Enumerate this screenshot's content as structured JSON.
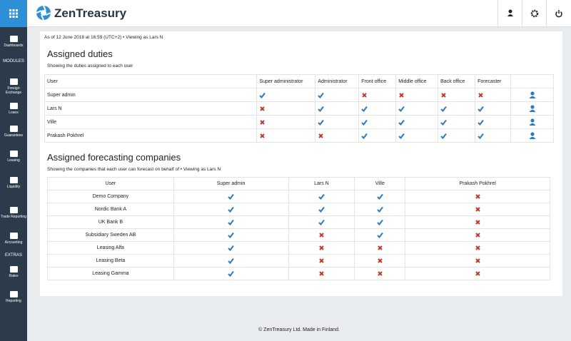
{
  "header": {
    "brand": "ZenTreasury"
  },
  "sidebar": {
    "items": [
      {
        "label": "Dashboards"
      },
      {
        "section": "MODULES"
      },
      {
        "label": "Foreign Exchange"
      },
      {
        "label": "Loans"
      },
      {
        "label": "Guarantees"
      },
      {
        "label": "Leasing"
      },
      {
        "label": "Liquidity"
      },
      {
        "label": "Trade Reporting"
      },
      {
        "label": "Accounting"
      },
      {
        "section": "EXTRAS"
      },
      {
        "label": "Rates"
      },
      {
        "label": "Reporting"
      }
    ]
  },
  "status": "As of 12 June 2018 at 16:59 (UTC+2) • Viewing as Lars N",
  "duties": {
    "title": "Assigned duties",
    "subtitle": "Showing the duties assigned to each user",
    "columns": [
      "User",
      "Super administrator",
      "Administrator",
      "Front office",
      "Middle office",
      "Back office",
      "Forecaster"
    ],
    "rows": [
      {
        "user": "Super admin",
        "values": [
          true,
          true,
          false,
          false,
          false,
          false
        ]
      },
      {
        "user": "Lars N",
        "values": [
          false,
          true,
          true,
          true,
          true,
          true
        ]
      },
      {
        "user": "Ville",
        "values": [
          false,
          true,
          true,
          true,
          true,
          true
        ]
      },
      {
        "user": "Prakash Pokhrel",
        "values": [
          false,
          false,
          true,
          true,
          true,
          true
        ]
      }
    ]
  },
  "forecasting": {
    "title": "Assigned forecasting companies",
    "subtitle": "Showing the companies that each user can forecast on behalf of • Viewing as Lars N",
    "columns": [
      "User",
      "Super admin",
      "Lars N",
      "Ville",
      "Prakash Pokhrel"
    ],
    "rows": [
      {
        "company": "Demo Company",
        "values": [
          true,
          true,
          true,
          false
        ]
      },
      {
        "company": "Nordic Bank A",
        "values": [
          true,
          true,
          true,
          false
        ]
      },
      {
        "company": "UK Bank B",
        "values": [
          true,
          true,
          true,
          false
        ]
      },
      {
        "company": "Subsidiary Sweden AB",
        "values": [
          true,
          false,
          true,
          false
        ]
      },
      {
        "company": "Leasing Alfa",
        "values": [
          true,
          false,
          false,
          false
        ]
      },
      {
        "company": "Leasing Beta",
        "values": [
          true,
          false,
          false,
          false
        ]
      },
      {
        "company": "Leasing Gamma",
        "values": [
          true,
          false,
          false,
          false
        ]
      }
    ]
  },
  "footer": "© ZenTreasury Ltd. Made in Finland."
}
